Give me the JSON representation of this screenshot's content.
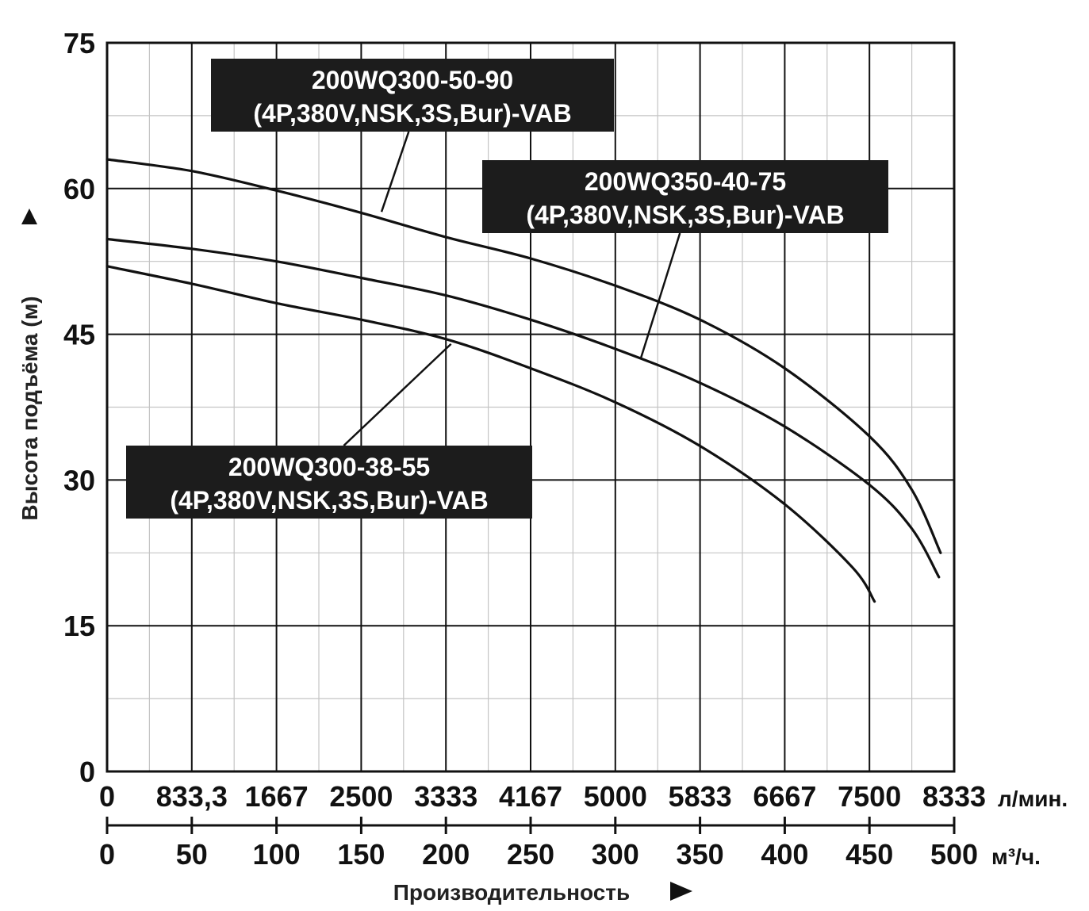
{
  "chart_data": {
    "type": "line",
    "ylabel": "Высота подъёма (м)",
    "xlabel": "Производительность",
    "ylim": [
      0,
      75
    ],
    "xlim": [
      0,
      500
    ],
    "y_ticks": [
      "0",
      "15",
      "30",
      "45",
      "60",
      "75"
    ],
    "x_ticks_m3h": [
      "0",
      "50",
      "100",
      "150",
      "200",
      "250",
      "300",
      "350",
      "400",
      "450",
      "500"
    ],
    "x_ticks_lmin": [
      "0",
      "833,3",
      "1667",
      "2500",
      "3333",
      "4167",
      "5000",
      "5833",
      "6667",
      "7500",
      "8333"
    ],
    "x_unit_lmin": "л/мин.",
    "x_unit_m3h": "м³/ч.",
    "grid": true,
    "series": [
      {
        "name": "200WQ300-50-90 (4P,380V,NSK,3S,Bur)-VAB",
        "x": [
          0,
          50,
          100,
          150,
          200,
          250,
          300,
          350,
          400,
          450,
          475,
          492
        ],
        "y": [
          63,
          61.8,
          59.8,
          57.5,
          55,
          52.8,
          50,
          46.5,
          41.5,
          34.5,
          29,
          22.5
        ]
      },
      {
        "name": "200WQ350-40-75 (4P,380V,NSK,3S,Bur)-VAB",
        "x": [
          0,
          50,
          100,
          150,
          200,
          250,
          300,
          350,
          400,
          450,
          475,
          491
        ],
        "y": [
          54.8,
          53.8,
          52.5,
          50.8,
          49,
          46.5,
          43.5,
          40,
          35.5,
          29.5,
          25,
          20
        ]
      },
      {
        "name": "200WQ300-38-55 (4P,380V,NSK,3S,Bur)-VAB",
        "x": [
          0,
          50,
          100,
          150,
          200,
          250,
          300,
          350,
          400,
          440,
          453
        ],
        "y": [
          52,
          50.2,
          48.2,
          46.5,
          44.5,
          41.5,
          38,
          33.5,
          27.5,
          21,
          17.5
        ]
      }
    ],
    "annotations": [
      {
        "line1": "200WQ300-50-90",
        "line2": "(4P,380V,NSK,3S,Bur)-VAB",
        "series": 0,
        "pointer_x": 162,
        "pointer_y": 57.6
      },
      {
        "line1": "200WQ350-40-75",
        "line2": "(4P,380V,NSK,3S,Bur)-VAB",
        "series": 1,
        "pointer_x": 315,
        "pointer_y": 42.5
      },
      {
        "line1": "200WQ300-38-55",
        "line2": "(4P,380V,NSK,3S,Bur)-VAB",
        "series": 2,
        "pointer_x": 203,
        "pointer_y": 44
      }
    ]
  }
}
